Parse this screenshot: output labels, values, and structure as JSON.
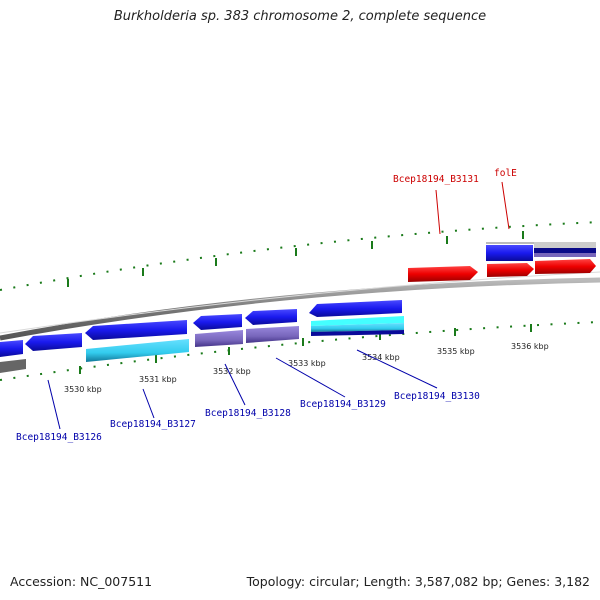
{
  "title": "Burkholderia sp. 383 chromosome 2, complete sequence",
  "footer": {
    "accession": "Accession: NC_007511",
    "topology": "Topology: circular; Length: 3,587,082 bp; Genes: 3,182"
  },
  "ruler_ticks": [
    "3530 kbp",
    "3531 kbp",
    "3532 kbp",
    "3533 kbp",
    "3534 kbp",
    "3535 kbp",
    "3536 kbp"
  ],
  "gene_labels": {
    "forward": [
      "Bcep18194_B3131",
      "folE"
    ],
    "reverse": [
      "Bcep18194_B3126",
      "Bcep18194_B3127",
      "Bcep18194_B3128",
      "Bcep18194_B3129",
      "Bcep18194_B3130"
    ]
  },
  "colors": {
    "forward_gene": "#ee0000",
    "reverse_gene": "#1a1aee",
    "forward_label": "#cc0000",
    "reverse_label": "#0000aa",
    "tick": "#1a7a1a",
    "backbone": "#888888",
    "cyan_feature": "#33ccee",
    "purple_feature": "#8877cc"
  }
}
